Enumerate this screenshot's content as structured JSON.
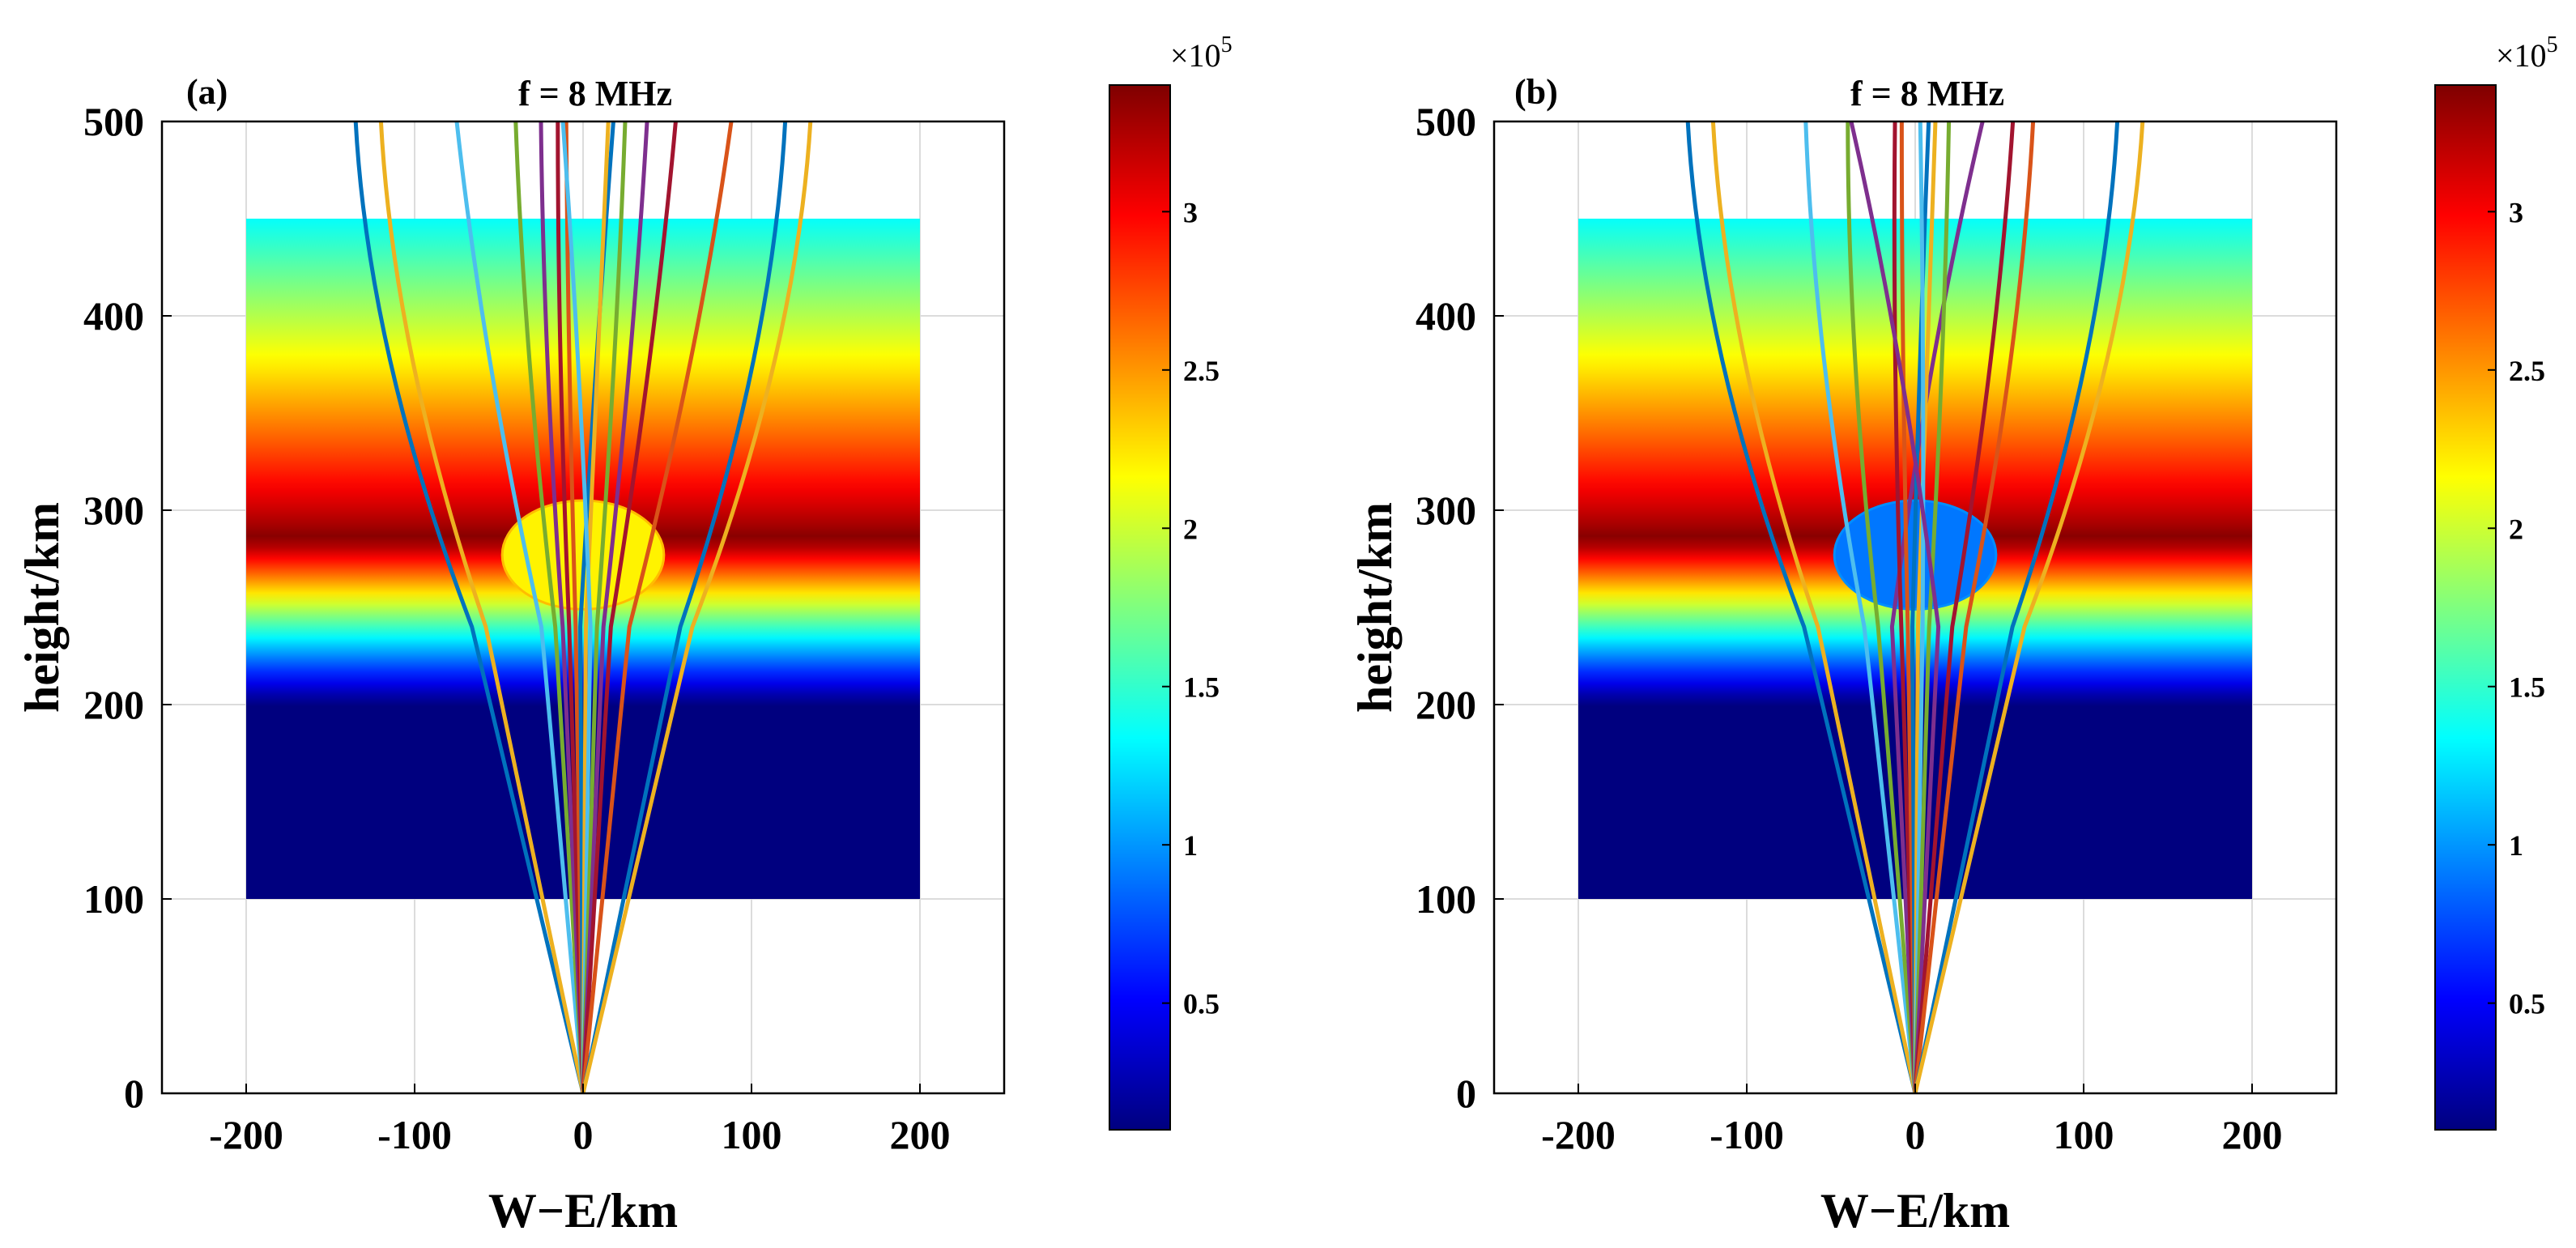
{
  "colors": {
    "jet": [
      "#00007f",
      "#0000ff",
      "#007fff",
      "#00ffff",
      "#7fff7f",
      "#ffff00",
      "#ff7f00",
      "#ff0000",
      "#7f0000"
    ],
    "ray_palette": [
      "#0072bd",
      "#edb120",
      "#4dbeee",
      "#77ac30",
      "#7e2f8e",
      "#a2142f",
      "#d95319"
    ]
  },
  "chart_data": [
    {
      "type": "ray-trace-heatmap",
      "panel_label": "(a)",
      "title": "f = 8 MHz",
      "xlabel": "W−E/km",
      "ylabel": "height/km",
      "xlim": [
        -250,
        250
      ],
      "ylim": [
        0,
        500
      ],
      "xticks": [
        -200,
        -100,
        0,
        100,
        200
      ],
      "xtick_labels": [
        "-200",
        "-100",
        "0",
        "100",
        "200"
      ],
      "yticks": [
        0,
        100,
        200,
        300,
        400,
        500
      ],
      "ytick_labels": [
        "0",
        "100",
        "200",
        "300",
        "400",
        "500"
      ],
      "grid": true,
      "ionosphere": {
        "x_range": [
          -200,
          200
        ],
        "y_range": [
          100,
          450
        ],
        "peak_height": 285,
        "peak_value": 340000
      },
      "irregularity": {
        "center_x": 0,
        "center_y": 277,
        "radius_x": 48,
        "radius_y": 28,
        "value": 220000,
        "kind": "enhancement"
      },
      "colorbar": {
        "exponent_label": "×10",
        "exponent_power": "5",
        "range": [
          0.1,
          3.4
        ],
        "ticks": [
          0.5,
          1,
          1.5,
          2,
          2.5,
          3
        ],
        "tick_labels": [
          "0.5",
          "1",
          "1.5",
          "2",
          "2.5",
          "3"
        ]
      },
      "rays": [
        {
          "launch_x": -120,
          "top_x": -135
        },
        {
          "launch_x": -105,
          "top_x": -120
        },
        {
          "launch_x": -45,
          "top_x": -75
        },
        {
          "launch_x": -30,
          "top_x": -40
        },
        {
          "launch_x": -22,
          "top_x": -25
        },
        {
          "launch_x": -15,
          "top_x": -15
        },
        {
          "launch_x": -8,
          "top_x": -10
        },
        {
          "launch_x": -3,
          "top_x": 18
        },
        {
          "launch_x": 3,
          "top_x": 15
        },
        {
          "launch_x": 8,
          "top_x": -12
        },
        {
          "launch_x": 15,
          "top_x": 25
        },
        {
          "launch_x": 22,
          "top_x": 38
        },
        {
          "launch_x": 30,
          "top_x": 55
        },
        {
          "launch_x": 50,
          "top_x": 88
        },
        {
          "launch_x": 105,
          "top_x": 120
        },
        {
          "launch_x": 118,
          "top_x": 135
        }
      ]
    },
    {
      "type": "ray-trace-heatmap",
      "panel_label": "(b)",
      "title": "f = 8 MHz",
      "xlabel": "W−E/km",
      "ylabel": "height/km",
      "xlim": [
        -250,
        250
      ],
      "ylim": [
        0,
        500
      ],
      "xticks": [
        -200,
        -100,
        0,
        100,
        200
      ],
      "xtick_labels": [
        "-200",
        "-100",
        "0",
        "100",
        "200"
      ],
      "yticks": [
        0,
        100,
        200,
        300,
        400,
        500
      ],
      "ytick_labels": [
        "0",
        "100",
        "200",
        "300",
        "400",
        "500"
      ],
      "grid": true,
      "ionosphere": {
        "x_range": [
          -200,
          200
        ],
        "y_range": [
          100,
          450
        ],
        "peak_height": 285,
        "peak_value": 340000
      },
      "irregularity": {
        "center_x": 0,
        "center_y": 277,
        "radius_x": 48,
        "radius_y": 28,
        "value": 90000,
        "kind": "depletion"
      },
      "colorbar": {
        "exponent_label": "×10",
        "exponent_power": "5",
        "range": [
          0.1,
          3.4
        ],
        "ticks": [
          0.5,
          1,
          1.5,
          2,
          2.5,
          3
        ],
        "tick_labels": [
          "0.5",
          "1",
          "1.5",
          "2",
          "2.5",
          "3"
        ]
      },
      "rays": [
        {
          "launch_x": -120,
          "top_x": -135
        },
        {
          "launch_x": -105,
          "top_x": -120
        },
        {
          "launch_x": -55,
          "top_x": -65
        },
        {
          "launch_x": -40,
          "top_x": -40
        },
        {
          "launch_x": -25,
          "top_x": 40
        },
        {
          "launch_x": -15,
          "top_x": -12
        },
        {
          "launch_x": -8,
          "top_x": -8
        },
        {
          "launch_x": -3,
          "top_x": 8
        },
        {
          "launch_x": 3,
          "top_x": 12
        },
        {
          "launch_x": 8,
          "top_x": 3
        },
        {
          "launch_x": 15,
          "top_x": 20
        },
        {
          "launch_x": 25,
          "top_x": -38
        },
        {
          "launch_x": 40,
          "top_x": 58
        },
        {
          "launch_x": 55,
          "top_x": 70
        },
        {
          "launch_x": 105,
          "top_x": 120
        },
        {
          "launch_x": 118,
          "top_x": 135
        }
      ]
    }
  ]
}
